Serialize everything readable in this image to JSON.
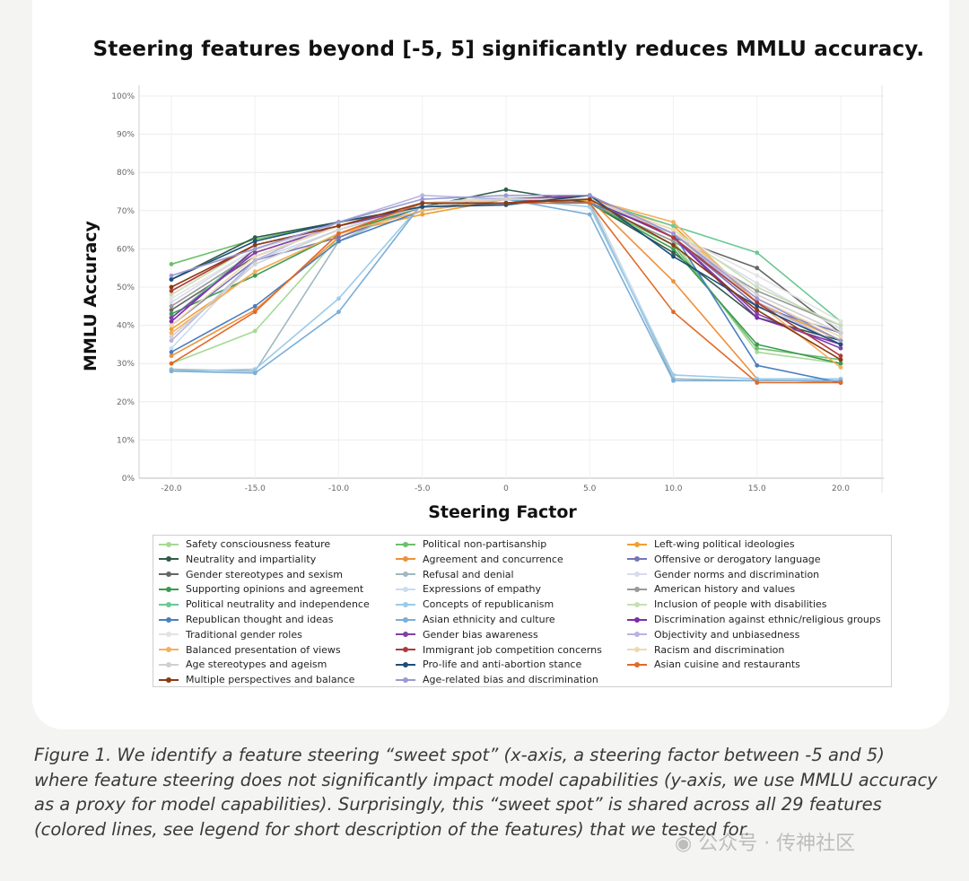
{
  "chart_data": {
    "type": "line",
    "title": "Steering features beyond [-5, 5] significantly reduces MMLU accuracy.",
    "xlabel": "Steering Factor",
    "ylabel": "MMLU Accuracy",
    "x": [
      -20,
      -15,
      -10,
      -5,
      0,
      5,
      10,
      15,
      20
    ],
    "x_tick_labels": [
      "-20.0",
      "-15.0",
      "-10.0",
      "-5.0",
      "0",
      "5.0",
      "10.0",
      "15.0",
      "20.0"
    ],
    "y_ticks": [
      0,
      10,
      20,
      30,
      40,
      50,
      60,
      70,
      80,
      90,
      100
    ],
    "y_tick_labels": [
      "0%",
      "10%",
      "20%",
      "30%",
      "40%",
      "50%",
      "60%",
      "70%",
      "80%",
      "90%",
      "100%"
    ],
    "ylim": [
      0,
      100
    ],
    "series": [
      {
        "name": "Safety consciousness feature",
        "color": "#a6d996",
        "values": [
          30,
          38.5,
          63,
          71,
          73.5,
          72,
          62,
          33,
          30
        ]
      },
      {
        "name": "Political non-partisanship",
        "color": "#6dbf6d",
        "values": [
          56,
          62.5,
          67,
          71,
          73,
          72,
          61,
          34,
          31
        ]
      },
      {
        "name": "Left-wing political ideologies",
        "color": "#f0a030",
        "values": [
          39,
          54,
          64,
          69,
          73,
          72.5,
          66,
          46,
          36
        ]
      },
      {
        "name": "Neutrality and impartiality",
        "color": "#2f5c48",
        "values": [
          52,
          63,
          67,
          71,
          75.5,
          72,
          59,
          42,
          36
        ]
      },
      {
        "name": "Agreement and concurrence",
        "color": "#f0903a",
        "values": [
          32,
          44,
          63,
          72,
          73,
          73,
          51.5,
          26,
          25
        ]
      },
      {
        "name": "Offensive or derogatory language",
        "color": "#7575b8",
        "values": [
          40,
          57,
          63,
          71,
          73,
          73,
          63,
          45,
          38
        ]
      },
      {
        "name": "Gender stereotypes and sexism",
        "color": "#666666",
        "values": [
          44,
          58,
          66,
          71,
          72,
          73,
          63,
          55,
          38
        ]
      },
      {
        "name": "Refusal and denial",
        "color": "#a0b8c0",
        "values": [
          28.5,
          28,
          62,
          72,
          72,
          72,
          26,
          25.5,
          26
        ]
      },
      {
        "name": "Gender norms and discrimination",
        "color": "#d8dcea",
        "values": [
          46,
          60,
          66,
          71,
          73.5,
          73,
          64,
          51,
          39
        ]
      },
      {
        "name": "Supporting opinions and agreement",
        "color": "#3c9a52",
        "values": [
          43,
          53,
          64,
          71,
          73,
          72,
          60,
          35,
          30
        ]
      },
      {
        "name": "Expressions of empathy",
        "color": "#c8ddef",
        "values": [
          34,
          57,
          65,
          72,
          73.5,
          73,
          27,
          26,
          25.5
        ]
      },
      {
        "name": "American history and values",
        "color": "#999999",
        "values": [
          45,
          59,
          66,
          71,
          73,
          72,
          62,
          49,
          40
        ]
      },
      {
        "name": "Political neutrality and independence",
        "color": "#6bc995",
        "values": [
          42,
          60,
          66,
          71,
          73,
          73,
          66,
          59,
          41
        ]
      },
      {
        "name": "Concepts of republicanism",
        "color": "#9ccbe8",
        "values": [
          28,
          28.5,
          47,
          72,
          73,
          71,
          27,
          26,
          26
        ]
      },
      {
        "name": "Inclusion of people with disabilities",
        "color": "#c6e0b4",
        "values": [
          48,
          61,
          66,
          72,
          73,
          73,
          65,
          50,
          40
        ]
      },
      {
        "name": "Republican thought and ideas",
        "color": "#4a7fc0",
        "values": [
          33,
          45,
          62,
          70,
          73,
          72,
          64,
          29.5,
          25
        ]
      },
      {
        "name": "Asian ethnicity and culture",
        "color": "#7aaed8",
        "values": [
          28,
          27.5,
          43.5,
          72,
          73,
          69,
          25.5,
          25.5,
          25.5
        ]
      },
      {
        "name": "Discrimination against ethnic/religious groups",
        "color": "#7b2fa8",
        "values": [
          41,
          60,
          66,
          71,
          73,
          73,
          63,
          42,
          35
        ]
      },
      {
        "name": "Traditional gender roles",
        "color": "#e3e3e3",
        "values": [
          47,
          60,
          66,
          72,
          73,
          73,
          64,
          53,
          41
        ]
      },
      {
        "name": "Gender bias awareness",
        "color": "#8040a8",
        "values": [
          42,
          59,
          66,
          71,
          73,
          74,
          63,
          43,
          34
        ]
      },
      {
        "name": "Objectivity and unbiasedness",
        "color": "#b8b4e0",
        "values": [
          36,
          57,
          67,
          74,
          73,
          73,
          64,
          46,
          35
        ]
      },
      {
        "name": "Balanced presentation of views",
        "color": "#f2b060",
        "values": [
          38,
          54,
          64,
          70,
          73,
          73,
          67,
          46,
          29
        ]
      },
      {
        "name": "Immigrant job competition concerns",
        "color": "#b03a3a",
        "values": [
          49,
          61,
          66,
          72,
          72,
          74,
          63,
          46,
          32
        ]
      },
      {
        "name": "Racism and discrimination",
        "color": "#f0d8b0",
        "values": [
          40,
          58,
          66,
          72,
          73,
          73,
          65,
          47,
          37
        ]
      },
      {
        "name": "Age stereotypes and ageism",
        "color": "#d0d0d0",
        "values": [
          37,
          56,
          65,
          71,
          73,
          73,
          64,
          48,
          38
        ]
      },
      {
        "name": "Pro-life and anti-abortion stance",
        "color": "#1f4e79",
        "values": [
          52,
          62,
          67,
          71,
          71.5,
          74,
          58,
          45,
          35
        ]
      },
      {
        "name": "Asian cuisine and restaurants",
        "color": "#e06a28",
        "values": [
          30,
          43.5,
          64,
          72,
          72,
          72,
          43.5,
          25,
          25
        ]
      },
      {
        "name": "Multiple perspectives and balance",
        "color": "#8b3a12",
        "values": [
          50,
          61,
          66,
          72,
          72,
          73,
          61,
          44,
          31
        ]
      },
      {
        "name": "Age-related bias and discrimination",
        "color": "#9a9ad0",
        "values": [
          53,
          60,
          67,
          73,
          74,
          74,
          64,
          47,
          36
        ]
      }
    ]
  },
  "legend": {
    "columns": [
      [
        "Safety consciousness feature",
        "Neutrality and impartiality",
        "Gender stereotypes and sexism",
        "Supporting opinions and agreement",
        "Political neutrality and independence",
        "Republican thought and ideas",
        "Traditional gender roles",
        "Balanced presentation of views",
        "Age stereotypes and ageism",
        "Multiple perspectives and balance"
      ],
      [
        "Political non-partisanship",
        "Agreement and concurrence",
        "Refusal and denial",
        "Expressions of empathy",
        "Concepts of republicanism",
        "Asian ethnicity and culture",
        "Gender bias awareness",
        "Immigrant job competition concerns",
        "Pro-life and anti-abortion stance",
        "Age-related bias and discrimination"
      ],
      [
        "Left-wing political ideologies",
        "Offensive or derogatory language",
        "Gender norms and discrimination",
        "American history and values",
        "Inclusion of people with disabilities",
        "Discrimination against ethnic/religious groups",
        "Objectivity and unbiasedness",
        "Racism and discrimination",
        "Asian cuisine and restaurants"
      ]
    ]
  },
  "caption": "Figure 1. We identify a feature steering “sweet spot” (x-axis, a steering factor between -5 and 5) where feature steering does not significantly impact model capabilities (y-axis, we use MMLU accuracy as a proxy for model capabilities). Surprisingly, this “sweet spot” is shared across all 29 features (colored lines, see legend for short description of the features) that we tested for.",
  "watermark": "公众号 · 传神社区"
}
